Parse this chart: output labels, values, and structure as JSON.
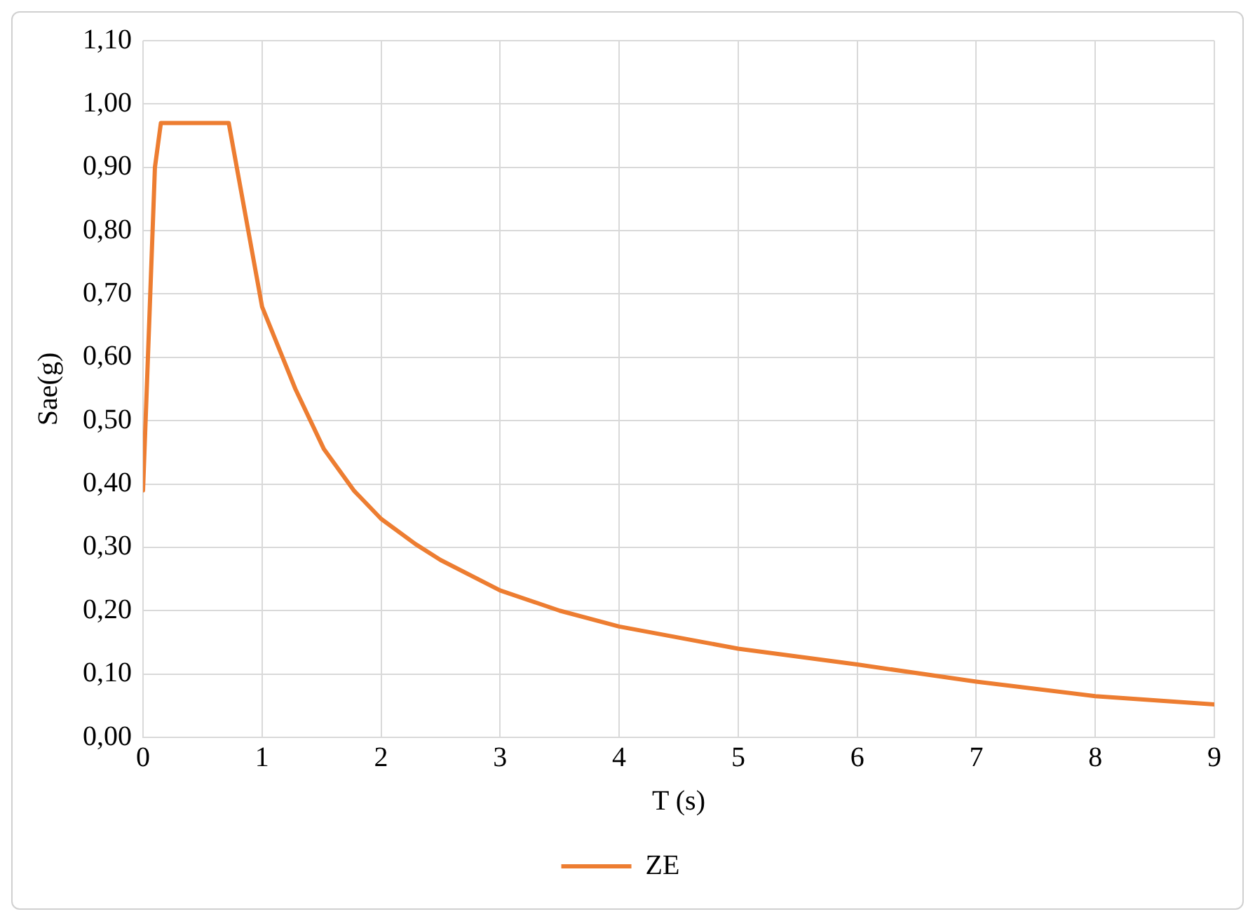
{
  "chart_data": {
    "type": "line",
    "xlabel": "T (s)",
    "ylabel": "Sae(g)",
    "series": [
      {
        "name": "ZE",
        "color": "#ed7d31",
        "x": [
          0,
          0.1,
          0.15,
          0.72,
          1.0,
          1.28,
          1.52,
          1.77,
          2.0,
          2.29,
          2.5,
          3.0,
          3.5,
          4.0,
          5.0,
          6.0,
          7.0,
          8.0,
          9.0
        ],
        "values": [
          0.39,
          0.9,
          0.97,
          0.97,
          0.68,
          0.55,
          0.455,
          0.39,
          0.345,
          0.305,
          0.28,
          0.232,
          0.2,
          0.175,
          0.14,
          0.115,
          0.088,
          0.065,
          0.052
        ]
      }
    ],
    "xlim": [
      0,
      9
    ],
    "xticks": [
      0,
      1,
      2,
      3,
      4,
      5,
      6,
      7,
      8,
      9
    ],
    "ylim": [
      0,
      1.1
    ],
    "yticks": [
      {
        "value": 0,
        "label": "0,00"
      },
      {
        "value": 0.1,
        "label": "0,10"
      },
      {
        "value": 0.2,
        "label": "0,20"
      },
      {
        "value": 0.3,
        "label": "0,30"
      },
      {
        "value": 0.4,
        "label": "0,40"
      },
      {
        "value": 0.5,
        "label": "0,50"
      },
      {
        "value": 0.6,
        "label": "0,60"
      },
      {
        "value": 0.7,
        "label": "0,70"
      },
      {
        "value": 0.8,
        "label": "0,80"
      },
      {
        "value": 0.9,
        "label": "0,90"
      },
      {
        "value": 1.0,
        "label": "1,00"
      },
      {
        "value": 1.1,
        "label": "1,10"
      }
    ],
    "grid": true,
    "legend": "bottom",
    "marker": "none",
    "line_style": "solid"
  }
}
